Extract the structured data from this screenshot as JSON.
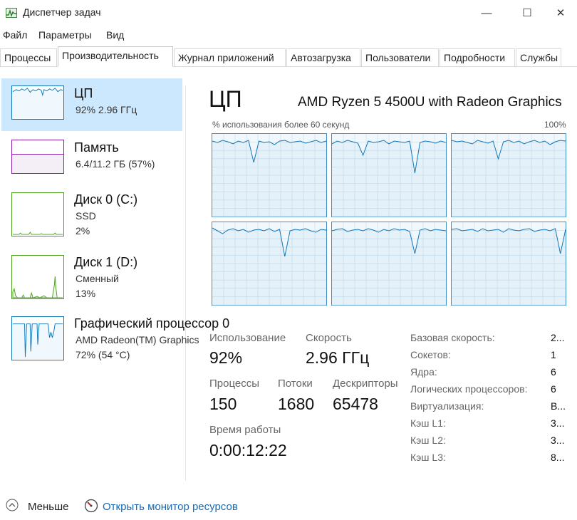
{
  "window": {
    "title": "Диспетчер задач",
    "minimize_glyph": "—",
    "maximize_glyph": "☐",
    "close_glyph": "✕"
  },
  "menu": [
    "Файл",
    "Параметры",
    "Вид"
  ],
  "tabs": [
    "Процессы",
    "Производительность",
    "Журнал приложений",
    "Автозагрузка",
    "Пользователи",
    "Подробности",
    "Службы"
  ],
  "active_tab": "Производительность",
  "sidebar": {
    "items": [
      {
        "title": "ЦП",
        "lines": [
          "92%  2.96 ГГц"
        ],
        "selected": true,
        "color": "#1178b8",
        "icon": "cpu-graph-icon"
      },
      {
        "title": "Память",
        "lines": [
          "6.4/11.2 ГБ (57%)"
        ],
        "selected": false,
        "color": "#8b1fa9",
        "icon": "memory-graph-icon"
      },
      {
        "title": "Диск 0 (C:)",
        "lines": [
          "SSD",
          "2%"
        ],
        "selected": false,
        "color": "#4da21f",
        "icon": "disk-graph-icon"
      },
      {
        "title": "Диск 1 (D:)",
        "lines": [
          "Сменный",
          "13%"
        ],
        "selected": false,
        "color": "#4da21f",
        "icon": "disk-graph-icon"
      },
      {
        "title": "Графический процессор 0",
        "lines": [
          "AMD Radeon(TM) Graphics",
          "72%  (54 °C)"
        ],
        "selected": false,
        "color": "#1178b8",
        "icon": "gpu-graph-icon"
      }
    ],
    "memory_fill_fraction": 0.57
  },
  "main": {
    "title": "ЦП",
    "cpu_model": "AMD Ryzen 5 4500U with Radeon Graphics",
    "graph_caption": "% использования более 60 секунд",
    "graph_max": "100%",
    "core_count": 6,
    "stats": {
      "usage_label": "Использование",
      "usage_value": "92%",
      "speed_label": "Скорость",
      "speed_value": "2.96 ГГц",
      "processes_label": "Процессы",
      "processes_value": "150",
      "threads_label": "Потоки",
      "threads_value": "1680",
      "handles_label": "Дескрипторы",
      "handles_value": "65478",
      "uptime_label": "Время работы",
      "uptime_value": "0:00:12:22"
    },
    "specs": [
      {
        "label": "Базовая скорость:",
        "value": "2..."
      },
      {
        "label": "Сокетов:",
        "value": "1"
      },
      {
        "label": "Ядра:",
        "value": "6"
      },
      {
        "label": "Логических процессоров:",
        "value": "6"
      },
      {
        "label": "Виртуализация:",
        "value": "В..."
      },
      {
        "label": "Кэш L1:",
        "value": "3..."
      },
      {
        "label": "Кэш L2:",
        "value": "3..."
      },
      {
        "label": "Кэш L3:",
        "value": "8..."
      }
    ]
  },
  "footer": {
    "less_label": "Меньше",
    "monitor_link": "Открыть монитор ресурсов"
  },
  "colors": {
    "accent_cpu": "#1178b8",
    "memory": "#8b1fa9",
    "disk": "#4da21f",
    "selected_bg": "#cce8ff",
    "link": "#1a6ab3"
  }
}
